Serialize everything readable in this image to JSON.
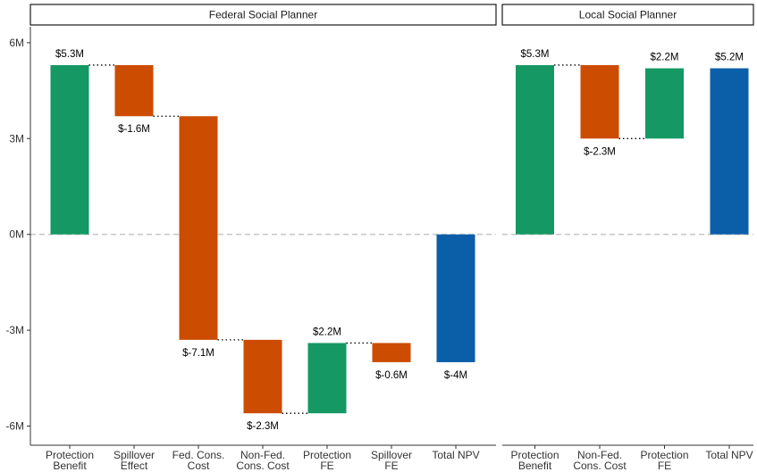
{
  "chart_data": {
    "type": "waterfall",
    "y_unit_prefix": "",
    "y_ticks": [
      {
        "value": 6,
        "label": "6M"
      },
      {
        "value": 3,
        "label": "3M"
      },
      {
        "value": 0,
        "label": "0M"
      },
      {
        "value": -3,
        "label": "-3M"
      },
      {
        "value": -6,
        "label": "-6M"
      }
    ],
    "ylim": [
      -6.6,
      6.5
    ],
    "colors": {
      "increase": "#159864",
      "decrease": "#cc4c02",
      "total": "#0b5ea8",
      "zero_line": "#c8c8c8",
      "connector": "#000000"
    },
    "panels": [
      {
        "title": "Federal Social Planner",
        "bars": [
          {
            "category": [
              "Protection",
              "Benefit"
            ],
            "kind": "increase",
            "start": 0,
            "end": 5.3,
            "label": "$5.3M",
            "label_pos": "above"
          },
          {
            "category": [
              "Spillover",
              "Effect"
            ],
            "kind": "decrease",
            "start": 5.3,
            "end": 3.7,
            "label": "$-1.6M",
            "label_pos": "below"
          },
          {
            "category": [
              "Fed. Cons.",
              "Cost"
            ],
            "kind": "decrease",
            "start": 3.7,
            "end": -3.3,
            "label": "$-7.1M",
            "label_pos": "below"
          },
          {
            "category": [
              "Non-Fed.",
              "Cons. Cost"
            ],
            "kind": "decrease",
            "start": -3.3,
            "end": -5.6,
            "label": "$-2.3M",
            "label_pos": "below"
          },
          {
            "category": [
              "Protection",
              "FE"
            ],
            "kind": "increase",
            "start": -5.6,
            "end": -3.4,
            "label": "$2.2M",
            "label_pos": "above"
          },
          {
            "category": [
              "Spillover",
              "FE"
            ],
            "kind": "decrease",
            "start": -3.4,
            "end": -4.0,
            "label": "$-0.6M",
            "label_pos": "below"
          },
          {
            "category": [
              "Total NPV"
            ],
            "kind": "total",
            "start": 0,
            "end": -4.0,
            "label": "$-4M",
            "label_pos": "below"
          }
        ]
      },
      {
        "title": "Local Social Planner",
        "bars": [
          {
            "category": [
              "Protection",
              "Benefit"
            ],
            "kind": "increase",
            "start": 0,
            "end": 5.3,
            "label": "$5.3M",
            "label_pos": "above"
          },
          {
            "category": [
              "Non-Fed.",
              "Cons. Cost"
            ],
            "kind": "decrease",
            "start": 5.3,
            "end": 3.0,
            "label": "$-2.3M",
            "label_pos": "below"
          },
          {
            "category": [
              "Protection",
              "FE"
            ],
            "kind": "increase",
            "start": 3.0,
            "end": 5.2,
            "label": "$2.2M",
            "label_pos": "above"
          },
          {
            "category": [
              "Total NPV"
            ],
            "kind": "total",
            "start": 0,
            "end": 5.2,
            "label": "$5.2M",
            "label_pos": "above"
          }
        ]
      }
    ]
  }
}
